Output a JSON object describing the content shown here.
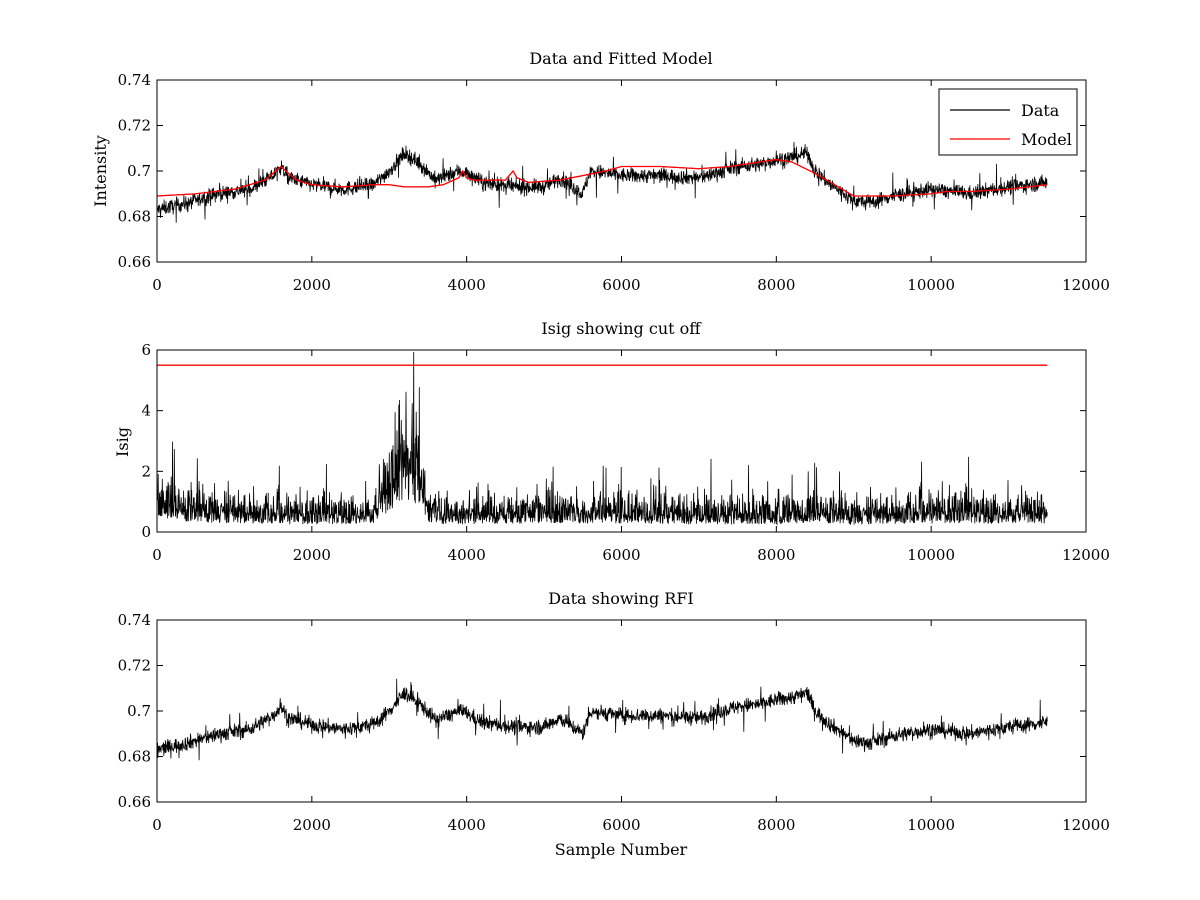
{
  "figure": {
    "background": "#ffffff",
    "colors": {
      "data": "#000000",
      "model": "#ff0000",
      "cutoff": "#ff0000"
    }
  },
  "chart_data": [
    {
      "type": "line",
      "title": "Data and Fitted Model",
      "xlabel": "",
      "ylabel": "Intensity",
      "xlim": [
        0,
        12000
      ],
      "ylim": [
        0.66,
        0.74
      ],
      "xticks": [
        "0",
        "2000",
        "4000",
        "6000",
        "8000",
        "10000",
        "12000"
      ],
      "yticks": [
        "0.66",
        "0.68",
        "0.7",
        "0.72",
        "0.74"
      ],
      "grid": false,
      "legend": {
        "position": "top-right",
        "entries": [
          "Data",
          "Model"
        ]
      },
      "series": [
        {
          "name": "Data",
          "color": "#000000",
          "kind": "noisy",
          "x": [
            0,
            400,
            800,
            1200,
            1500,
            1600,
            1700,
            2000,
            2400,
            2800,
            3000,
            3200,
            3400,
            3600,
            3900,
            4000,
            4200,
            4600,
            5000,
            5200,
            5500,
            5600,
            6000,
            6500,
            7000,
            7500,
            7800,
            8000,
            8200,
            8400,
            8500,
            8700,
            9000,
            9200,
            9500,
            10000,
            10500,
            11000,
            11500
          ],
          "y": [
            0.683,
            0.686,
            0.69,
            0.692,
            0.698,
            0.702,
            0.697,
            0.694,
            0.692,
            0.694,
            0.7,
            0.708,
            0.703,
            0.696,
            0.7,
            0.699,
            0.695,
            0.693,
            0.693,
            0.697,
            0.69,
            0.7,
            0.698,
            0.698,
            0.697,
            0.702,
            0.703,
            0.705,
            0.706,
            0.708,
            0.7,
            0.694,
            0.687,
            0.686,
            0.689,
            0.692,
            0.69,
            0.693,
            0.695
          ],
          "band": 0.006,
          "spike": 0.009
        },
        {
          "name": "Model",
          "color": "#ff0000",
          "kind": "line",
          "x": [
            0,
            500,
            1000,
            1400,
            1600,
            1700,
            1800,
            2000,
            2400,
            2800,
            3000,
            3200,
            3500,
            3700,
            3900,
            3950,
            4000,
            4100,
            4500,
            4600,
            4650,
            4800,
            5200,
            5500,
            5800,
            6000,
            6500,
            7000,
            7400,
            7800,
            8000,
            8200,
            8500,
            8800,
            9000,
            9500,
            10000,
            10200,
            10250,
            10500,
            11000,
            11500
          ],
          "y": [
            0.689,
            0.69,
            0.692,
            0.696,
            0.702,
            0.699,
            0.696,
            0.694,
            0.693,
            0.694,
            0.694,
            0.693,
            0.693,
            0.694,
            0.697,
            0.7,
            0.697,
            0.696,
            0.696,
            0.7,
            0.697,
            0.695,
            0.696,
            0.698,
            0.7,
            0.702,
            0.702,
            0.701,
            0.702,
            0.704,
            0.705,
            0.704,
            0.699,
            0.693,
            0.689,
            0.689,
            0.69,
            0.691,
            0.691,
            0.691,
            0.692,
            0.694
          ]
        }
      ]
    },
    {
      "type": "line",
      "title": "Isig showing cut off",
      "xlabel": "",
      "ylabel": "Isig",
      "xlim": [
        0,
        12000
      ],
      "ylim": [
        0,
        6
      ],
      "xticks": [
        "0",
        "2000",
        "4000",
        "6000",
        "8000",
        "10000",
        "12000"
      ],
      "yticks": [
        "0",
        "2",
        "4",
        "6"
      ],
      "grid": false,
      "series": [
        {
          "color": "#000000",
          "kind": "noisy-positive",
          "x": [
            0,
            300,
            600,
            1000,
            2000,
            2800,
            3000,
            3200,
            3400,
            3500,
            4000,
            5000,
            6000,
            7000,
            8000,
            8400,
            9000,
            10000,
            11000,
            11500
          ],
          "y": [
            1.4,
            1.0,
            0.9,
            0.8,
            0.7,
            0.8,
            1.8,
            3.3,
            2.0,
            0.8,
            0.7,
            0.8,
            0.8,
            0.7,
            0.7,
            0.9,
            0.7,
            0.8,
            0.8,
            0.8
          ],
          "band": 0.7,
          "spike": 1.5
        },
        {
          "color": "#ff0000",
          "kind": "line",
          "x": [
            0,
            11500
          ],
          "y": [
            5.5,
            5.5
          ]
        }
      ]
    },
    {
      "type": "line",
      "title": "Data showing RFI",
      "xlabel": "Sample Number",
      "ylabel": "",
      "xlim": [
        0,
        12000
      ],
      "ylim": [
        0.66,
        0.74
      ],
      "xticks": [
        "0",
        "2000",
        "4000",
        "6000",
        "8000",
        "10000",
        "12000"
      ],
      "yticks": [
        "0.66",
        "0.68",
        "0.7",
        "0.72",
        "0.74"
      ],
      "grid": false,
      "series": [
        {
          "color": "#000000",
          "kind": "noisy",
          "x": [
            0,
            400,
            800,
            1200,
            1500,
            1600,
            1700,
            2000,
            2400,
            2800,
            3000,
            3200,
            3400,
            3600,
            3900,
            4000,
            4200,
            4600,
            5000,
            5200,
            5500,
            5600,
            6000,
            6500,
            7000,
            7500,
            7800,
            8000,
            8200,
            8400,
            8500,
            8700,
            9000,
            9200,
            9500,
            10000,
            10500,
            11000,
            11500
          ],
          "y": [
            0.683,
            0.686,
            0.69,
            0.692,
            0.698,
            0.702,
            0.697,
            0.694,
            0.692,
            0.694,
            0.7,
            0.708,
            0.703,
            0.696,
            0.7,
            0.699,
            0.695,
            0.693,
            0.693,
            0.697,
            0.69,
            0.7,
            0.698,
            0.698,
            0.697,
            0.702,
            0.703,
            0.705,
            0.706,
            0.708,
            0.7,
            0.694,
            0.687,
            0.686,
            0.689,
            0.692,
            0.69,
            0.693,
            0.695
          ],
          "band": 0.006,
          "spike": 0.009
        }
      ]
    }
  ]
}
